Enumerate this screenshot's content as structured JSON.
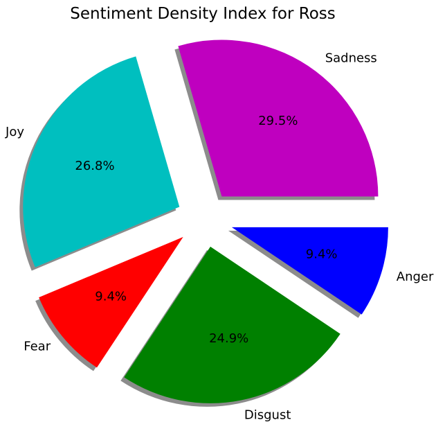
{
  "chart_data": {
    "type": "pie",
    "title": "Sentiment Density Index for Ross",
    "slices": [
      {
        "label": "Sadness",
        "value": 29.5,
        "pct_label": "29.5%",
        "color": "#bf00bf"
      },
      {
        "label": "Joy",
        "value": 26.8,
        "pct_label": "26.8%",
        "color": "#00bfbf"
      },
      {
        "label": "Fear",
        "value": 9.4,
        "pct_label": "9.4%",
        "color": "#ff0000"
      },
      {
        "label": "Disgust",
        "value": 24.9,
        "pct_label": "24.9%",
        "color": "#008000"
      },
      {
        "label": "Anger",
        "value": 9.4,
        "pct_label": "9.4%",
        "color": "#0000ff"
      }
    ],
    "start_angle_deg": 0,
    "direction": "counterclockwise",
    "exploded": true,
    "shadow": true,
    "legend": "none"
  }
}
